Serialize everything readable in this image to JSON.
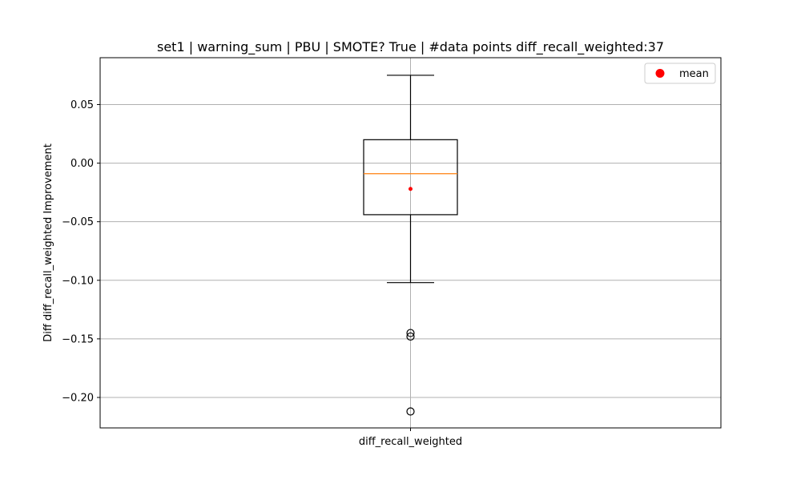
{
  "chart_data": {
    "type": "box",
    "title": "set1 | warning_sum | PBU | SMOTE? True | #data points diff_recall_weighted:37",
    "xlabel": "",
    "ylabel": "Diff diff_recall_weighted Improvement",
    "categories": [
      "diff_recall_weighted"
    ],
    "ylim": [
      -0.226,
      0.09
    ],
    "yticks": [
      0.05,
      0.0,
      -0.05,
      -0.1,
      -0.15,
      -0.2
    ],
    "ytick_labels": [
      "0.05",
      "0.00",
      "−0.05",
      "−0.10",
      "−0.15",
      "−0.20"
    ],
    "grid": true,
    "legend": {
      "position": "top-right",
      "entries": [
        "mean"
      ]
    },
    "series": [
      {
        "category": "diff_recall_weighted",
        "whisker_high": 0.075,
        "q3": 0.02,
        "median": -0.009,
        "mean": -0.022,
        "q1": -0.044,
        "whisker_low": -0.102,
        "outliers": [
          -0.145,
          -0.148,
          -0.212
        ]
      }
    ],
    "colors": {
      "box": "#000000",
      "median": "#ff7f0e",
      "mean": "#ff0000",
      "grid": "#b0b0b0",
      "outlier": "#000000"
    }
  }
}
